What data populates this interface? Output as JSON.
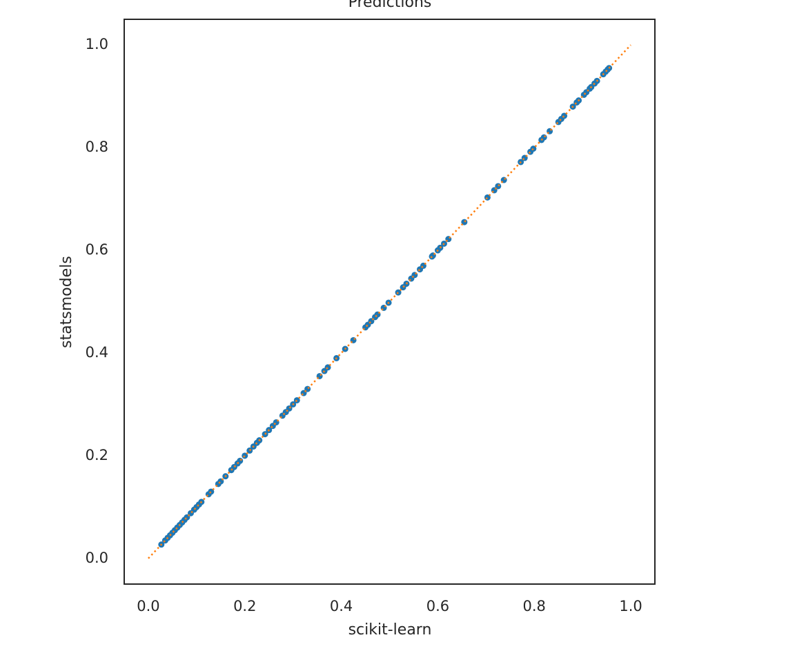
{
  "chart_data": {
    "type": "scatter",
    "title": "Predictions",
    "xlabel": "scikit-learn",
    "ylabel": "statsmodels",
    "x": [
      0.027,
      0.035,
      0.04,
      0.045,
      0.05,
      0.055,
      0.06,
      0.065,
      0.07,
      0.075,
      0.08,
      0.088,
      0.095,
      0.1,
      0.105,
      0.11,
      0.125,
      0.13,
      0.145,
      0.15,
      0.16,
      0.172,
      0.178,
      0.185,
      0.19,
      0.2,
      0.21,
      0.218,
      0.225,
      0.23,
      0.242,
      0.25,
      0.258,
      0.265,
      0.278,
      0.285,
      0.292,
      0.3,
      0.308,
      0.322,
      0.33,
      0.355,
      0.365,
      0.372,
      0.39,
      0.408,
      0.425,
      0.45,
      0.455,
      0.462,
      0.47,
      0.475,
      0.488,
      0.498,
      0.518,
      0.528,
      0.535,
      0.545,
      0.552,
      0.563,
      0.57,
      0.588,
      0.59,
      0.6,
      0.605,
      0.613,
      0.622,
      0.655,
      0.703,
      0.717,
      0.725,
      0.737,
      0.772,
      0.78,
      0.792,
      0.798,
      0.815,
      0.82,
      0.832,
      0.85,
      0.856,
      0.862,
      0.88,
      0.888,
      0.892,
      0.903,
      0.908,
      0.915,
      0.918,
      0.925,
      0.93,
      0.943,
      0.948,
      0.952,
      0.955
    ],
    "values": [
      0.027,
      0.035,
      0.04,
      0.045,
      0.05,
      0.055,
      0.06,
      0.065,
      0.07,
      0.075,
      0.08,
      0.088,
      0.095,
      0.1,
      0.105,
      0.11,
      0.125,
      0.13,
      0.145,
      0.15,
      0.16,
      0.172,
      0.178,
      0.185,
      0.19,
      0.2,
      0.21,
      0.218,
      0.225,
      0.23,
      0.242,
      0.25,
      0.258,
      0.265,
      0.278,
      0.285,
      0.292,
      0.3,
      0.308,
      0.322,
      0.33,
      0.355,
      0.365,
      0.372,
      0.39,
      0.408,
      0.425,
      0.45,
      0.455,
      0.462,
      0.47,
      0.475,
      0.488,
      0.498,
      0.518,
      0.528,
      0.535,
      0.545,
      0.552,
      0.563,
      0.57,
      0.588,
      0.59,
      0.6,
      0.605,
      0.613,
      0.622,
      0.655,
      0.703,
      0.717,
      0.725,
      0.737,
      0.772,
      0.78,
      0.792,
      0.798,
      0.815,
      0.82,
      0.832,
      0.85,
      0.856,
      0.862,
      0.88,
      0.888,
      0.892,
      0.903,
      0.908,
      0.915,
      0.918,
      0.925,
      0.93,
      0.943,
      0.948,
      0.952,
      0.955
    ],
    "color": "#1f77b4",
    "reference_line": {
      "x": [
        0,
        1
      ],
      "values": [
        0,
        1
      ],
      "color": "#ff7f0e"
    },
    "xlim": [
      -0.05,
      1.05
    ],
    "ylim": [
      -0.05,
      1.05
    ],
    "xticks": [
      {
        "value": 0,
        "label": "0.0"
      },
      0.2,
      0.4,
      0.6,
      0.8,
      {
        "value": 1,
        "label": "1.0"
      }
    ],
    "yticks": [
      {
        "value": 0,
        "label": "0.0"
      },
      0.2,
      0.4,
      0.6,
      0.8,
      {
        "value": 1,
        "label": "1.0"
      }
    ],
    "grid": false
  }
}
